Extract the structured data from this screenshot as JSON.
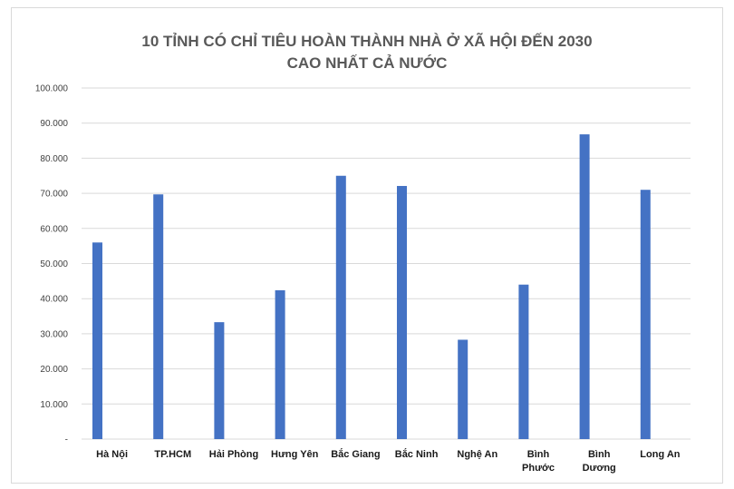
{
  "chart_data": {
    "type": "bar",
    "title_lines": [
      "10 TỈNH CÓ CHỈ TIÊU HOÀN THÀNH NHÀ Ở XÃ HỘI ĐẾN 2030",
      "CAO NHẤT CẢ NƯỚC"
    ],
    "categories": [
      "Hà Nội",
      "TP.HCM",
      "Hải Phòng",
      "Hưng Yên",
      "Bắc Giang",
      "Bắc Ninh",
      "Nghệ An",
      "Bình Phước",
      "Bình Dương",
      "Long An"
    ],
    "category_lines": [
      [
        "Hà Nội"
      ],
      [
        "TP.HCM"
      ],
      [
        "Hải Phòng"
      ],
      [
        "Hưng Yên"
      ],
      [
        "Bắc Giang"
      ],
      [
        "Bắc Ninh"
      ],
      [
        "Nghệ An"
      ],
      [
        "Bình",
        "Phước"
      ],
      [
        "Bình",
        "Dương"
      ],
      [
        "Long An"
      ]
    ],
    "values": [
      56000,
      69700,
      33300,
      42400,
      75000,
      72100,
      28300,
      44000,
      86800,
      71000
    ],
    "ylim": [
      0,
      100000
    ],
    "yticks": [
      0,
      10000,
      20000,
      30000,
      40000,
      50000,
      60000,
      70000,
      80000,
      90000,
      100000
    ],
    "ytick_labels": [
      "-",
      "10.000",
      "20.000",
      "30.000",
      "40.000",
      "50.000",
      "60.000",
      "70.000",
      "80.000",
      "90.000",
      "100.000"
    ],
    "bar_color": "#4472c4",
    "grid": true,
    "xlabel": "",
    "ylabel": ""
  }
}
